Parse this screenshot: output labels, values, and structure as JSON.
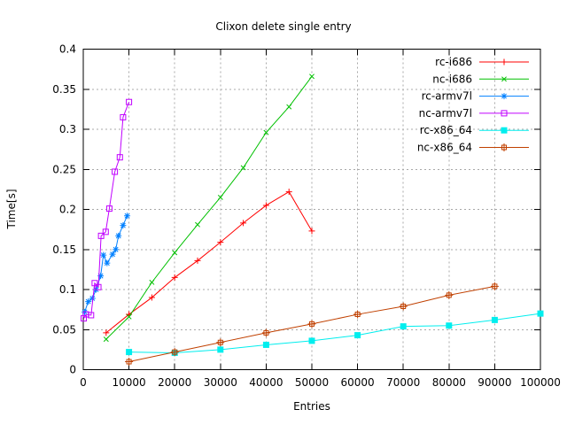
{
  "window": {
    "background": "#ffffff",
    "grid_color": "#a8a8a8",
    "axis_color": "#000000"
  },
  "chart_data": {
    "type": "line",
    "title": "Clixon delete single entry",
    "xlabel": "Entries",
    "ylabel": "Time[s]",
    "xlim": [
      0,
      100000
    ],
    "ylim": [
      0,
      0.4
    ],
    "grid": true,
    "legend_position": "top-right",
    "xticks": {
      "values": [
        0,
        10000,
        20000,
        30000,
        40000,
        50000,
        60000,
        70000,
        80000,
        90000,
        100000
      ],
      "labels": [
        "0",
        "10000",
        "20000",
        "30000",
        "40000",
        "50000",
        "60000",
        "70000",
        "80000",
        "90000",
        "100000"
      ]
    },
    "yticks": {
      "values": [
        0,
        0.05,
        0.1,
        0.15,
        0.2,
        0.25,
        0.3,
        0.35,
        0.4
      ],
      "labels": [
        "0",
        "0.05",
        "0.1",
        "0.15",
        "0.2",
        "0.25",
        "0.3",
        "0.35",
        "0.4"
      ]
    },
    "series": [
      {
        "name": "rc-i686",
        "color": "#ff0000",
        "marker": "plus",
        "points": [
          [
            5000,
            0.046
          ],
          [
            10000,
            0.069
          ],
          [
            15000,
            0.09
          ],
          [
            20000,
            0.115
          ],
          [
            25000,
            0.136
          ],
          [
            30000,
            0.159
          ],
          [
            35000,
            0.183
          ],
          [
            40000,
            0.205
          ],
          [
            45000,
            0.222
          ],
          [
            50000,
            0.173
          ]
        ]
      },
      {
        "name": "nc-i686",
        "color": "#00c000",
        "marker": "cross",
        "points": [
          [
            5000,
            0.038
          ],
          [
            10000,
            0.066
          ],
          [
            15000,
            0.109
          ],
          [
            20000,
            0.146
          ],
          [
            25000,
            0.181
          ],
          [
            30000,
            0.215
          ],
          [
            35000,
            0.252
          ],
          [
            40000,
            0.296
          ],
          [
            45000,
            0.328
          ],
          [
            50000,
            0.366
          ]
        ]
      },
      {
        "name": "rc-armv7l",
        "color": "#0080ff",
        "marker": "asterisk",
        "points": [
          [
            300,
            0.072
          ],
          [
            1100,
            0.085
          ],
          [
            2000,
            0.089
          ],
          [
            2800,
            0.1
          ],
          [
            3800,
            0.117
          ],
          [
            4400,
            0.143
          ],
          [
            5200,
            0.133
          ],
          [
            6400,
            0.144
          ],
          [
            7100,
            0.15
          ],
          [
            7700,
            0.167
          ],
          [
            8700,
            0.18
          ],
          [
            9600,
            0.192
          ]
        ]
      },
      {
        "name": "nc-armv7l",
        "color": "#c000ff",
        "marker": "square",
        "points": [
          [
            100,
            0.064
          ],
          [
            600,
            0.069
          ],
          [
            1700,
            0.068
          ],
          [
            2500,
            0.108
          ],
          [
            3300,
            0.103
          ],
          [
            3900,
            0.167
          ],
          [
            4900,
            0.172
          ],
          [
            5700,
            0.201
          ],
          [
            6900,
            0.247
          ],
          [
            8000,
            0.265
          ],
          [
            8700,
            0.315
          ],
          [
            10000,
            0.334
          ]
        ]
      },
      {
        "name": "rc-x86_64",
        "color": "#00eeee",
        "marker": "square-filled",
        "points": [
          [
            10000,
            0.022
          ],
          [
            20000,
            0.021
          ],
          [
            30000,
            0.025
          ],
          [
            40000,
            0.031
          ],
          [
            50000,
            0.036
          ],
          [
            60000,
            0.043
          ],
          [
            70000,
            0.054
          ],
          [
            80000,
            0.055
          ],
          [
            90000,
            0.062
          ],
          [
            100000,
            0.07
          ]
        ]
      },
      {
        "name": "nc-x86_64",
        "color": "#c04000",
        "marker": "boxplus",
        "points": [
          [
            10000,
            0.01
          ],
          [
            20000,
            0.022
          ],
          [
            30000,
            0.034
          ],
          [
            40000,
            0.046
          ],
          [
            50000,
            0.057
          ],
          [
            60000,
            0.069
          ],
          [
            70000,
            0.079
          ],
          [
            80000,
            0.093
          ],
          [
            90000,
            0.104
          ]
        ]
      }
    ]
  }
}
